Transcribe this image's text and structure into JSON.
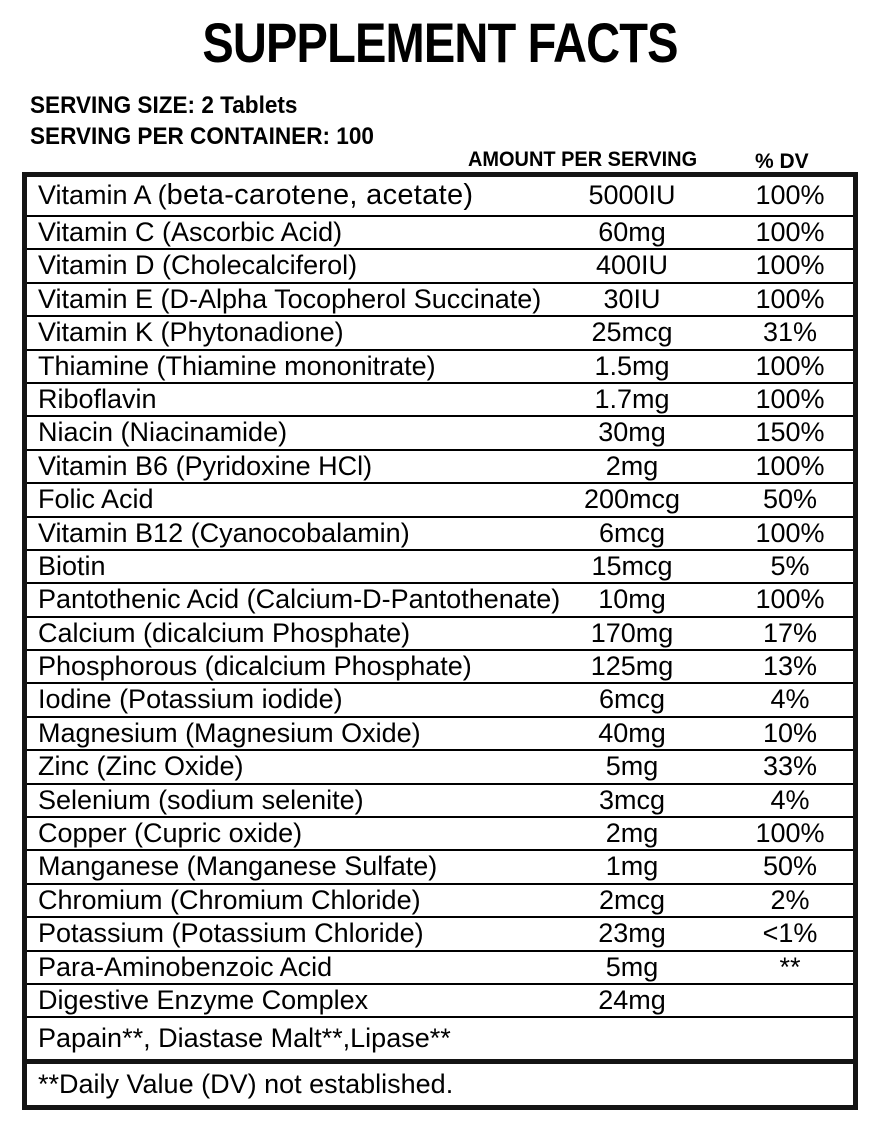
{
  "title": "SUPPLEMENT FACTS",
  "serving": {
    "size": "SERVING SIZE: 2 Tablets",
    "per_container": "SERVING PER CONTAINER: 100"
  },
  "columns": {
    "amount_header": "AMOUNT PER SERVING",
    "dv_header": "% DV"
  },
  "table": {
    "rows": [
      {
        "name": "Vitamin A (",
        "name_wide": "beta-carotene, acetate)",
        "amount": "5000IU",
        "dv": "100%"
      },
      {
        "name": "Vitamin C (Ascorbic Acid)",
        "amount": "60mg",
        "dv": "100%"
      },
      {
        "name": "Vitamin D (Cholecalciferol)",
        "amount": "400IU",
        "dv": "100%"
      },
      {
        "name": "Vitamin E (D-Alpha Tocopherol Succinate)",
        "amount": "30IU",
        "dv": "100%"
      },
      {
        "name": "Vitamin K (Phytonadione)",
        "amount": "25mcg",
        "dv": "31%"
      },
      {
        "name": "Thiamine (Thiamine mononitrate)",
        "amount": "1.5mg",
        "dv": "100%"
      },
      {
        "name": "Riboflavin",
        "amount": "1.7mg",
        "dv": "100%"
      },
      {
        "name": "Niacin (Niacinamide)",
        "amount": "30mg",
        "dv": "150%"
      },
      {
        "name": "Vitamin B6 (Pyridoxine HCl)",
        "amount": "2mg",
        "dv": "100%"
      },
      {
        "name": "Folic Acid",
        "amount": "200mcg",
        "dv": "50%"
      },
      {
        "name": "Vitamin B12 (Cyanocobalamin)",
        "amount": "6mcg",
        "dv": "100%"
      },
      {
        "name": "Biotin",
        "amount": "15mcg",
        "dv": "5%"
      },
      {
        "name": "Pantothenic Acid (Calcium-D-Pantothenate)",
        "amount": "10mg",
        "dv": "100%"
      },
      {
        "name": "Calcium (dicalcium Phosphate)",
        "amount": "170mg",
        "dv": "17%"
      },
      {
        "name": "Phosphorous (dicalcium Phosphate)",
        "amount": "125mg",
        "dv": "13%"
      },
      {
        "name": "Iodine (Potassium iodide)",
        "amount": "6mcg",
        "dv": "4%"
      },
      {
        "name": "Magnesium (Magnesium Oxide)",
        "amount": "40mg",
        "dv": "10%"
      },
      {
        "name": "Zinc (Zinc Oxide)",
        "amount": "5mg",
        "dv": "33%"
      },
      {
        "name": "Selenium (sodium selenite)",
        "amount": "3mcg",
        "dv": "4%"
      },
      {
        "name": "Copper (Cupric oxide)",
        "amount": "2mg",
        "dv": "100%"
      },
      {
        "name": "Manganese (Manganese Sulfate)",
        "amount": "1mg",
        "dv": "50%"
      },
      {
        "name": "Chromium (Chromium Chloride)",
        "amount": "2mcg",
        "dv": "2%"
      },
      {
        "name": "Potassium (Potassium Chloride)",
        "amount": "23mg",
        "dv": "<1%"
      },
      {
        "name": "Para-Aminobenzoic Acid",
        "amount": "5mg",
        "dv": "**"
      },
      {
        "name": "Digestive Enzyme Complex",
        "amount": "24mg",
        "dv": ""
      }
    ],
    "enzyme_ingredients": "Papain**, Diastase Malt**,Lipase**",
    "footnote": "**Daily Value (DV) not established."
  },
  "colors": {
    "text": "#000000",
    "background": "#ffffff",
    "border": "#141414"
  }
}
